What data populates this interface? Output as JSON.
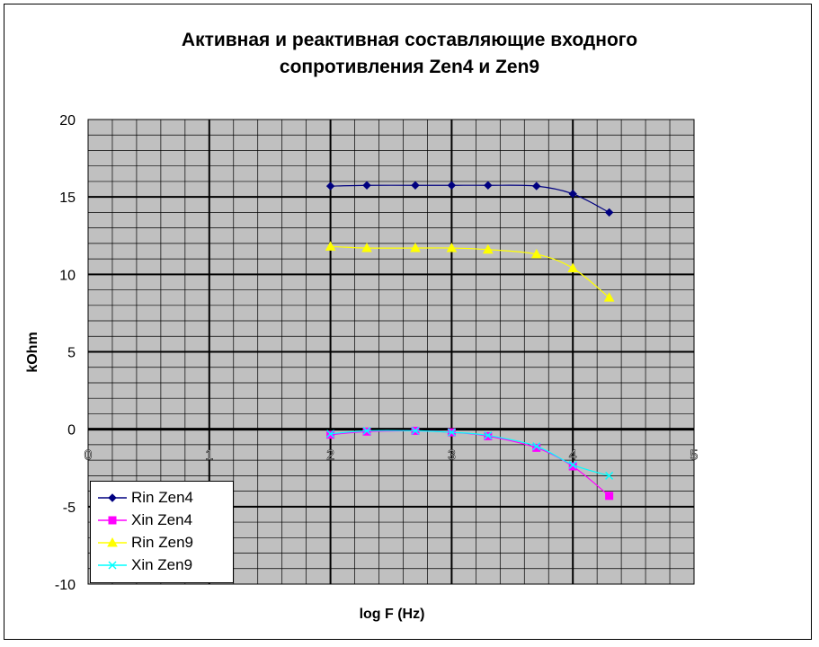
{
  "chart_data": {
    "type": "line",
    "title_lines": [
      "Активная и реактивная составляющие входного",
      "сопротивления Zen4 и Zen9"
    ],
    "xlabel": "log F (Hz)",
    "ylabel": "kOhm",
    "xlim": [
      0,
      5
    ],
    "ylim": [
      -10,
      20
    ],
    "x_ticks": [
      "0",
      "1",
      "2",
      "3",
      "4",
      "5"
    ],
    "y_ticks": [
      "20",
      "15",
      "10",
      "5",
      "0",
      "-5",
      "-10"
    ],
    "grid": true,
    "plot_background": "#c0c0c0",
    "legend_position": "bottom-left",
    "series": [
      {
        "name": "Rin Zen4",
        "color": "#000080",
        "marker": "diamond",
        "x": [
          2,
          2.3,
          2.7,
          3,
          3.3,
          3.7,
          4,
          4.3
        ],
        "y": [
          15.7,
          15.75,
          15.75,
          15.75,
          15.75,
          15.7,
          15.2,
          14.0
        ]
      },
      {
        "name": "Xin Zen4",
        "color": "#ff00ff",
        "marker": "square",
        "x": [
          2,
          2.3,
          2.7,
          3,
          3.3,
          3.7,
          4,
          4.3
        ],
        "y": [
          -0.35,
          -0.15,
          -0.1,
          -0.2,
          -0.45,
          -1.2,
          -2.4,
          -4.3
        ]
      },
      {
        "name": "Rin Zen9",
        "color": "#ffff00",
        "marker": "triangle",
        "x": [
          2,
          2.3,
          2.7,
          3,
          3.3,
          3.7,
          4,
          4.3
        ],
        "y": [
          11.8,
          11.7,
          11.7,
          11.7,
          11.6,
          11.3,
          10.4,
          8.5
        ]
      },
      {
        "name": "Xin Zen9",
        "color": "#00ffff",
        "marker": "x",
        "x": [
          2,
          2.3,
          2.7,
          3,
          3.3,
          3.7,
          4,
          4.3
        ],
        "y": [
          -0.3,
          -0.1,
          -0.1,
          -0.2,
          -0.4,
          -1.1,
          -2.3,
          -3.0
        ]
      }
    ]
  }
}
